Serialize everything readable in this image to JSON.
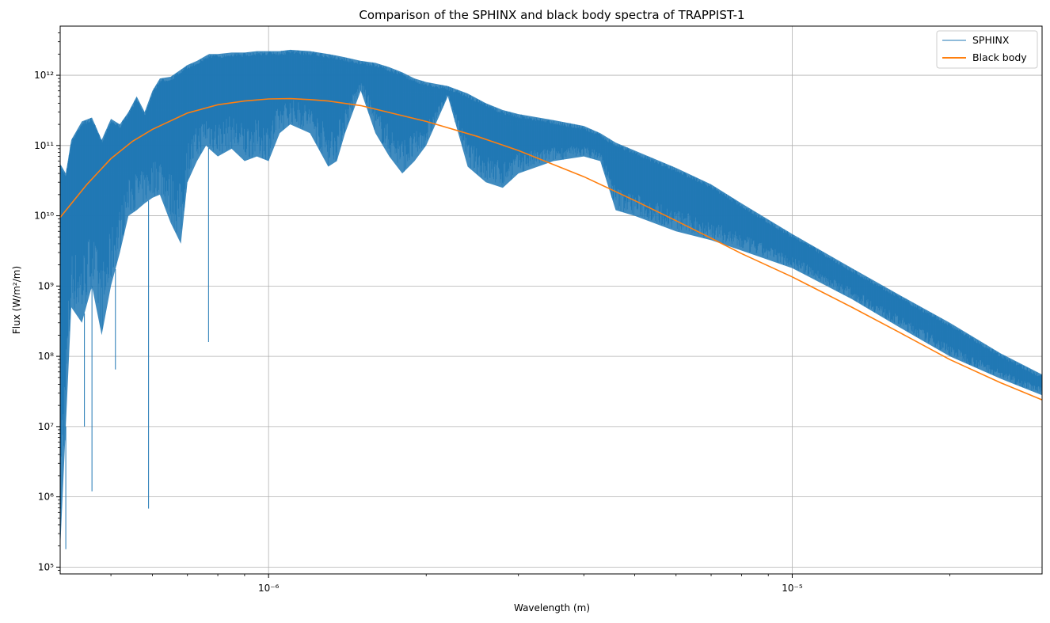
{
  "chart_data": {
    "type": "line",
    "title": "Comparison of the SPHINX and black body spectra of TRAPPIST-1",
    "xlabel": "Wavelength (m)",
    "ylabel": "Flux (W/m²/m)",
    "x_scale": "log",
    "y_scale": "log",
    "xlim": [
      4e-07,
      3e-05
    ],
    "ylim": [
      80000.0,
      5000000000000.0
    ],
    "grid": true,
    "legend_position": "top-right",
    "x_major_ticks": [
      {
        "value": 1e-06,
        "label": "10⁻⁶"
      },
      {
        "value": 1e-05,
        "label": "10⁻⁵"
      }
    ],
    "y_major_ticks": [
      {
        "value": 100000.0,
        "label": "10⁵"
      },
      {
        "value": 1000000.0,
        "label": "10⁶"
      },
      {
        "value": 10000000.0,
        "label": "10⁷"
      },
      {
        "value": 100000000.0,
        "label": "10⁸"
      },
      {
        "value": 1000000000.0,
        "label": "10⁹"
      },
      {
        "value": 10000000000.0,
        "label": "10¹⁰"
      },
      {
        "value": 100000000000.0,
        "label": "10¹¹"
      },
      {
        "value": 1000000000000.0,
        "label": "10¹²"
      }
    ],
    "series": [
      {
        "name": "SPHINX",
        "color": "#1f77b4",
        "style": "band",
        "x": [
          4e-07,
          4.1e-07,
          4.2e-07,
          4.4e-07,
          4.6e-07,
          4.8e-07,
          5e-07,
          5.2e-07,
          5.4e-07,
          5.6e-07,
          5.8e-07,
          6e-07,
          6.2e-07,
          6.5e-07,
          6.8e-07,
          7e-07,
          7.3e-07,
          7.6e-07,
          7.7e-07,
          8e-07,
          8.5e-07,
          9e-07,
          9.5e-07,
          1e-06,
          1.05e-06,
          1.1e-06,
          1.2e-06,
          1.3e-06,
          1.35e-06,
          1.4e-06,
          1.5e-06,
          1.6e-06,
          1.7e-06,
          1.8e-06,
          1.9e-06,
          2e-06,
          2.2e-06,
          2.4e-06,
          2.6e-06,
          2.8e-06,
          3e-06,
          3.5e-06,
          4e-06,
          4.3e-06,
          4.6e-06,
          5e-06,
          6e-06,
          7e-06,
          8e-06,
          1e-05,
          1.3e-05,
          1.6e-05,
          2e-05,
          2.5e-05,
          3e-05
        ],
        "upper": [
          55000000000.0,
          40000000000.0,
          120000000000.0,
          220000000000.0,
          250000000000.0,
          120000000000.0,
          240000000000.0,
          200000000000.0,
          300000000000.0,
          500000000000.0,
          300000000000.0,
          600000000000.0,
          900000000000.0,
          950000000000.0,
          1200000000000.0,
          1400000000000.0,
          1600000000000.0,
          1900000000000.0,
          2000000000000.0,
          2000000000000.0,
          2100000000000.0,
          2100000000000.0,
          2200000000000.0,
          2200000000000.0,
          2200000000000.0,
          2300000000000.0,
          2200000000000.0,
          2000000000000.0,
          1900000000000.0,
          1800000000000.0,
          1600000000000.0,
          1500000000000.0,
          1300000000000.0,
          1100000000000.0,
          900000000000.0,
          800000000000.0,
          700000000000.0,
          550000000000.0,
          400000000000.0,
          320000000000.0,
          280000000000.0,
          230000000000.0,
          190000000000.0,
          150000000000.0,
          110000000000.0,
          85000000000.0,
          48000000000.0,
          28000000000.0,
          15000000000.0,
          5500000000.0,
          1800000000.0,
          750000000.0,
          300000000.0,
          110000000.0,
          55000000.0
        ],
        "lower": [
          180000.0,
          10000000.0,
          500000000.0,
          300000000.0,
          1000000000.0,
          200000000.0,
          1000000000.0,
          3000000000.0,
          10000000000.0,
          12000000000.0,
          15000000000.0,
          18000000000.0,
          20000000000.0,
          8000000000.0,
          4000000000.0,
          30000000000.0,
          60000000000.0,
          100000000000.0,
          90000000000.0,
          70000000000.0,
          90000000000.0,
          60000000000.0,
          70000000000.0,
          60000000000.0,
          150000000000.0,
          200000000000.0,
          150000000000.0,
          50000000000.0,
          60000000000.0,
          150000000000.0,
          600000000000.0,
          150000000000.0,
          70000000000.0,
          40000000000.0,
          60000000000.0,
          100000000000.0,
          500000000000.0,
          50000000000.0,
          30000000000.0,
          25000000000.0,
          40000000000.0,
          60000000000.0,
          70000000000.0,
          60000000000.0,
          12000000000.0,
          10000000000.0,
          6000000000.0,
          4500000000.0,
          3200000000.0,
          1800000000.0,
          650000000.0,
          260000000.0,
          100000000.0,
          48000000.0,
          28000000.0
        ]
      },
      {
        "name": "Black body",
        "color": "#ff7f0e",
        "style": "line",
        "x": [
          4e-07,
          4.5e-07,
          5e-07,
          5.5e-07,
          6e-07,
          7e-07,
          8e-07,
          9e-07,
          1e-06,
          1.1e-06,
          1.2e-06,
          1.3e-06,
          1.5e-06,
          2e-06,
          2.5e-06,
          3e-06,
          4e-06,
          5e-06,
          6e-06,
          7e-06,
          8e-06,
          1e-05,
          1.3e-05,
          1.6e-05,
          2e-05,
          2.5e-05,
          3e-05
        ],
        "values": [
          9500000000.0,
          28000000000.0,
          65000000000.0,
          115000000000.0,
          170000000000.0,
          290000000000.0,
          380000000000.0,
          430000000000.0,
          460000000000.0,
          465000000000.0,
          450000000000.0,
          430000000000.0,
          370000000000.0,
          220000000000.0,
          135000000000.0,
          85000000000.0,
          36000000000.0,
          16500000000.0,
          8500000000.0,
          4800000000.0,
          2900000000.0,
          1350000000.0,
          500000000.0,
          220000000.0,
          90000000.0,
          42000000.0,
          24000000.0
        ]
      }
    ],
    "sharp_dips": [
      {
        "x": 4.1e-07,
        "value": 180000.0
      },
      {
        "x": 4.45e-07,
        "value": 10000000.0
      },
      {
        "x": 4.6e-07,
        "value": 1200000.0
      },
      {
        "x": 5.9e-07,
        "value": 680000.0
      },
      {
        "x": 5.1e-07,
        "value": 65000000.0
      },
      {
        "x": 7.68e-07,
        "value": 160000000.0
      }
    ]
  }
}
